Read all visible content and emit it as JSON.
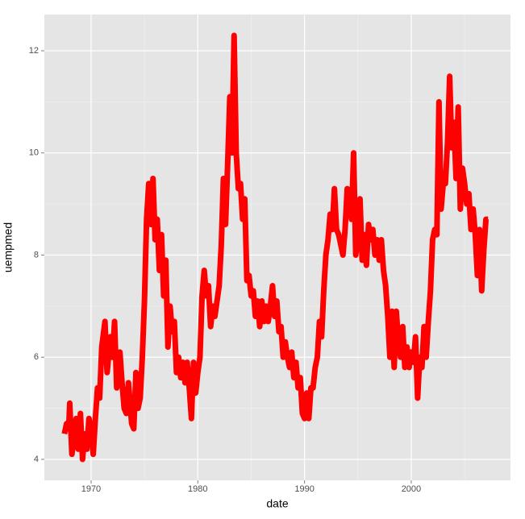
{
  "chart_data": {
    "type": "line",
    "x_label": "date",
    "y_label": "uempmed",
    "xlim": [
      1965.62,
      2009.3
    ],
    "ylim": [
      3.59,
      12.71
    ],
    "xticks": [
      1970,
      1980,
      1990,
      2000
    ],
    "yticks": [
      4,
      6,
      8,
      10,
      12
    ],
    "x_minor": [
      1975,
      1985,
      1995,
      2005
    ],
    "y_minor": [
      5,
      7,
      9,
      11
    ],
    "grid": true,
    "series": [
      {
        "name": "uempmed",
        "color": "#ff0000",
        "x": [
          1967.5,
          1967.7,
          1967.9,
          1968.0,
          1968.2,
          1968.4,
          1968.6,
          1968.8,
          1969.0,
          1969.2,
          1969.4,
          1969.6,
          1969.8,
          1970.0,
          1970.2,
          1970.4,
          1970.6,
          1970.8,
          1971.0,
          1971.3,
          1971.5,
          1971.8,
          1972.0,
          1972.2,
          1972.4,
          1972.7,
          1972.9,
          1973.1,
          1973.3,
          1973.5,
          1973.8,
          1974.0,
          1974.2,
          1974.4,
          1974.6,
          1974.8,
          1975.0,
          1975.2,
          1975.4,
          1975.6,
          1975.8,
          1976.0,
          1976.2,
          1976.4,
          1976.6,
          1976.8,
          1977.0,
          1977.2,
          1977.4,
          1977.6,
          1977.8,
          1978.0,
          1978.2,
          1978.4,
          1978.6,
          1978.8,
          1979.0,
          1979.2,
          1979.4,
          1979.6,
          1979.8,
          1980.0,
          1980.2,
          1980.4,
          1980.6,
          1980.8,
          1981.0,
          1981.2,
          1981.4,
          1981.6,
          1981.8,
          1982.0,
          1982.2,
          1982.4,
          1982.6,
          1982.8,
          1983.0,
          1983.2,
          1983.4,
          1983.6,
          1983.8,
          1984.0,
          1984.2,
          1984.4,
          1984.6,
          1984.8,
          1985.0,
          1985.2,
          1985.4,
          1985.6,
          1985.8,
          1986.0,
          1986.2,
          1986.4,
          1986.6,
          1986.8,
          1987.0,
          1987.2,
          1987.4,
          1987.6,
          1987.8,
          1988.0,
          1988.2,
          1988.4,
          1988.6,
          1988.8,
          1989.0,
          1989.2,
          1989.4,
          1989.6,
          1989.8,
          1990.0,
          1990.2,
          1990.4,
          1990.6,
          1990.8,
          1991.0,
          1991.2,
          1991.4,
          1991.6,
          1991.8,
          1992.0,
          1992.2,
          1992.4,
          1992.6,
          1992.8,
          1993.0,
          1993.2,
          1993.4,
          1993.6,
          1993.8,
          1994.0,
          1994.2,
          1994.4,
          1994.6,
          1994.8,
          1995.0,
          1995.2,
          1995.4,
          1995.6,
          1995.8,
          1996.0,
          1996.2,
          1996.4,
          1996.6,
          1996.8,
          1997.0,
          1997.2,
          1997.4,
          1997.6,
          1997.8,
          1998.0,
          1998.2,
          1998.4,
          1998.6,
          1998.8,
          1999.0,
          1999.2,
          1999.4,
          1999.6,
          1999.8,
          2000.0,
          2000.2,
          2000.4,
          2000.6,
          2000.8,
          2001.0,
          2001.2,
          2001.4,
          2001.6,
          2001.8,
          2002.0,
          2002.2,
          2002.4,
          2002.6,
          2002.8,
          2003.0,
          2003.2,
          2003.4,
          2003.6,
          2003.8,
          2004.0,
          2004.2,
          2004.4,
          2004.6,
          2004.8,
          2005.0,
          2005.2,
          2005.4,
          2005.6,
          2005.8,
          2006.0,
          2006.2,
          2006.4,
          2006.6,
          2006.8,
          2007.0,
          2007.2
        ],
        "values": [
          4.5,
          4.7,
          4.6,
          5.1,
          4.1,
          4.4,
          4.8,
          4.2,
          4.9,
          4.0,
          4.5,
          4.2,
          4.8,
          4.6,
          4.1,
          4.8,
          5.4,
          5.2,
          6.2,
          6.7,
          5.7,
          6.4,
          6.0,
          6.7,
          5.4,
          6.1,
          5.5,
          5.0,
          4.9,
          5.5,
          4.7,
          4.6,
          5.7,
          5.0,
          5.2,
          6.0,
          7.1,
          8.7,
          9.4,
          8.6,
          9.5,
          8.3,
          8.7,
          7.7,
          8.4,
          7.2,
          7.9,
          6.2,
          7.0,
          6.5,
          6.7,
          5.7,
          6.0,
          5.6,
          5.9,
          5.5,
          5.9,
          5.4,
          4.8,
          5.9,
          5.3,
          5.7,
          6.0,
          7.2,
          7.7,
          7.2,
          7.4,
          6.6,
          7.0,
          6.8,
          7.1,
          7.4,
          8.2,
          9.5,
          8.6,
          9.8,
          11.1,
          10.0,
          12.3,
          10.0,
          9.3,
          9.4,
          8.7,
          9.1,
          7.5,
          7.6,
          7.2,
          7.3,
          6.8,
          7.1,
          6.6,
          7.1,
          6.7,
          7.0,
          6.7,
          7.0,
          7.4,
          6.8,
          7.1,
          6.5,
          6.6,
          6.0,
          6.3,
          6.0,
          5.8,
          6.1,
          5.6,
          5.9,
          5.4,
          5.6,
          4.9,
          4.8,
          5.3,
          4.8,
          5.4,
          5.4,
          5.8,
          6.0,
          6.7,
          6.4,
          7.3,
          8.0,
          8.3,
          8.8,
          8.5,
          9.3,
          8.5,
          8.4,
          8.2,
          8.0,
          8.5,
          9.3,
          9.2,
          8.7,
          10.0,
          8.0,
          8.4,
          9.1,
          7.9,
          8.4,
          7.8,
          8.6,
          8.3,
          8.5,
          8.0,
          8.3,
          7.9,
          8.3,
          7.7,
          7.4,
          6.8,
          6.0,
          6.9,
          5.8,
          6.9,
          6.3,
          6.0,
          6.6,
          5.8,
          6.2,
          5.8,
          6.1,
          5.9,
          6.4,
          5.2,
          6.0,
          5.8,
          6.6,
          6.0,
          6.7,
          7.3,
          8.3,
          8.5,
          8.4,
          11.0,
          8.9,
          9.4,
          9.4,
          10.2,
          11.5,
          10.1,
          10.6,
          9.5,
          10.9,
          8.9,
          9.7,
          9.4,
          9.0,
          9.2,
          8.5,
          8.9,
          8.4,
          7.6,
          8.5,
          7.3,
          8.1,
          8.7,
          8.7
        ]
      }
    ]
  }
}
